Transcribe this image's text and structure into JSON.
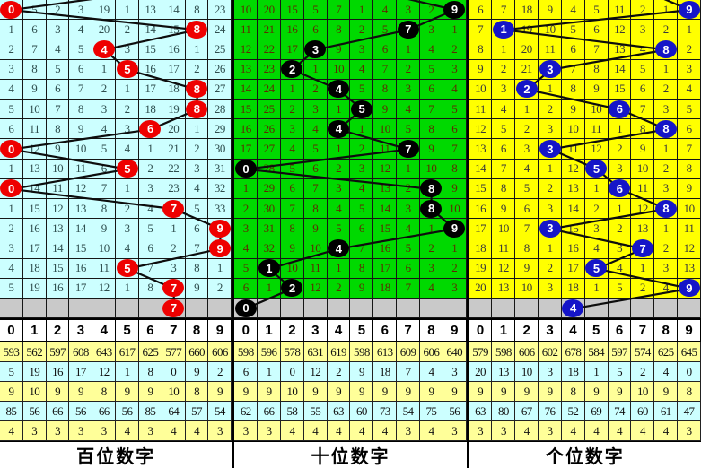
{
  "columns": [
    "0",
    "1",
    "2",
    "3",
    "4",
    "5",
    "6",
    "7",
    "8",
    "9"
  ],
  "colors": {
    "grid_line": "#161616",
    "trace_line": "#0d0d0d",
    "gray_row_bg": "#C9C9C9",
    "stat_yellow_bg": "#FFFF99",
    "stat_cyan_bg": "#CCFFFF",
    "header_bg": "#FFFFFF",
    "ball_text": "#FFFFFF"
  },
  "chart_data": {
    "type": "table",
    "subtype": "lottery-3D-trend-chart",
    "legend": "Each panel: columns are digits 0-9, rows are draws; numbers are miss counts; colored ball marks drawn digit; gray bottom row is next-draw pick; five stat rows follow the digit header.",
    "panels": [
      {
        "id": "hundreds",
        "footer_label": "百位数字",
        "cell_bg": "#CCFFFF",
        "text_color": "#2F4F4F",
        "ball_color": "#EE0000",
        "incoming_top_x": 125,
        "drawn_sequence": [
          0,
          8,
          4,
          5,
          8,
          8,
          6,
          0,
          5,
          0,
          7,
          9,
          9,
          5,
          7
        ],
        "next_ball_col": 4,
        "rows": [
          {
            "cells": [
              0,
              5,
              2,
              3,
              19,
              1,
              13,
              14,
              8,
              23
            ],
            "ball": 0
          },
          {
            "cells": [
              1,
              6,
              3,
              4,
              20,
              2,
              14,
              15,
              8,
              24
            ],
            "ball": 8
          },
          {
            "cells": [
              2,
              7,
              4,
              5,
              4,
              3,
              15,
              16,
              1,
              25
            ],
            "ball": 4
          },
          {
            "cells": [
              3,
              8,
              5,
              6,
              1,
              5,
              16,
              17,
              2,
              26
            ],
            "ball": 5
          },
          {
            "cells": [
              4,
              9,
              6,
              7,
              2,
              1,
              17,
              18,
              8,
              27
            ],
            "ball": 8
          },
          {
            "cells": [
              5,
              10,
              7,
              8,
              3,
              2,
              18,
              19,
              8,
              28
            ],
            "ball": 8
          },
          {
            "cells": [
              6,
              11,
              8,
              9,
              4,
              3,
              6,
              20,
              1,
              29
            ],
            "ball": 6
          },
          {
            "cells": [
              0,
              12,
              9,
              10,
              5,
              4,
              1,
              21,
              2,
              30
            ],
            "ball": 0
          },
          {
            "cells": [
              1,
              13,
              10,
              11,
              6,
              5,
              2,
              22,
              3,
              31
            ],
            "ball": 5
          },
          {
            "cells": [
              0,
              14,
              11,
              12,
              7,
              1,
              3,
              23,
              4,
              32
            ],
            "ball": 0
          },
          {
            "cells": [
              1,
              15,
              12,
              13,
              8,
              2,
              4,
              7,
              5,
              33
            ],
            "ball": 7
          },
          {
            "cells": [
              2,
              16,
              13,
              14,
              9,
              3,
              5,
              1,
              6,
              9
            ],
            "ball": 9
          },
          {
            "cells": [
              3,
              17,
              14,
              15,
              10,
              4,
              6,
              2,
              7,
              9
            ],
            "ball": 9
          },
          {
            "cells": [
              4,
              18,
              15,
              16,
              11,
              5,
              7,
              3,
              8,
              1
            ],
            "ball": 5
          },
          {
            "cells": [
              5,
              19,
              16,
              17,
              12,
              1,
              8,
              7,
              9,
              2
            ],
            "ball": 7
          }
        ],
        "next_ball": 7,
        "stats": [
          [
            "593",
            "562",
            "597",
            "608",
            "643",
            "617",
            "625",
            "577",
            "660",
            "606"
          ],
          [
            "5",
            "19",
            "16",
            "17",
            "12",
            "1",
            "8",
            "0",
            "9",
            "2"
          ],
          [
            "9",
            "10",
            "9",
            "9",
            "8",
            "9",
            "9",
            "10",
            "8",
            "9"
          ],
          [
            "85",
            "56",
            "66",
            "56",
            "66",
            "56",
            "85",
            "64",
            "57",
            "54"
          ],
          [
            "4",
            "3",
            "3",
            "3",
            "3",
            "4",
            "3",
            "4",
            "4",
            "3"
          ]
        ]
      },
      {
        "id": "tens",
        "footer_label": "十位数字",
        "cell_bg": "#00D900",
        "text_color": "#5C2E00",
        "ball_color": "#000000",
        "incoming_top_x": 181,
        "drawn_sequence": [
          9,
          7,
          3,
          2,
          4,
          5,
          4,
          7,
          0,
          8,
          8,
          9,
          4,
          1,
          2
        ],
        "rows": [
          {
            "cells": [
              10,
              20,
              15,
              5,
              7,
              1,
              4,
              3,
              2,
              9
            ],
            "ball": 9
          },
          {
            "cells": [
              11,
              21,
              16,
              6,
              8,
              2,
              5,
              7,
              3,
              1
            ],
            "ball": 7
          },
          {
            "cells": [
              12,
              22,
              17,
              3,
              9,
              3,
              6,
              1,
              4,
              2
            ],
            "ball": 3
          },
          {
            "cells": [
              13,
              23,
              2,
              1,
              10,
              4,
              7,
              2,
              5,
              3
            ],
            "ball": 2
          },
          {
            "cells": [
              14,
              24,
              1,
              2,
              4,
              5,
              8,
              3,
              6,
              4
            ],
            "ball": 4
          },
          {
            "cells": [
              15,
              25,
              2,
              3,
              1,
              5,
              9,
              4,
              7,
              5
            ],
            "ball": 5
          },
          {
            "cells": [
              16,
              26,
              3,
              4,
              4,
              1,
              10,
              5,
              8,
              6
            ],
            "ball": 4
          },
          {
            "cells": [
              17,
              27,
              4,
              5,
              1,
              2,
              11,
              7,
              9,
              7
            ],
            "ball": 7
          },
          {
            "cells": [
              0,
              28,
              5,
              6,
              2,
              3,
              12,
              1,
              10,
              8
            ],
            "ball": 0
          },
          {
            "cells": [
              1,
              29,
              6,
              7,
              3,
              4,
              13,
              2,
              8,
              9
            ],
            "ball": 8
          },
          {
            "cells": [
              2,
              30,
              7,
              8,
              4,
              5,
              14,
              3,
              8,
              10
            ],
            "ball": 8
          },
          {
            "cells": [
              3,
              31,
              8,
              9,
              5,
              6,
              15,
              4,
              1,
              9
            ],
            "ball": 9
          },
          {
            "cells": [
              4,
              32,
              9,
              10,
              4,
              7,
              16,
              5,
              2,
              1
            ],
            "ball": 4
          },
          {
            "cells": [
              5,
              1,
              10,
              11,
              1,
              8,
              17,
              6,
              3,
              2
            ],
            "ball": 1
          },
          {
            "cells": [
              6,
              1,
              2,
              12,
              2,
              9,
              18,
              7,
              4,
              3
            ],
            "ball": 2
          }
        ],
        "next_ball": 0,
        "stats": [
          [
            "598",
            "596",
            "578",
            "631",
            "619",
            "598",
            "613",
            "609",
            "606",
            "640"
          ],
          [
            "6",
            "1",
            "0",
            "12",
            "2",
            "9",
            "18",
            "7",
            "4",
            "3"
          ],
          [
            "9",
            "9",
            "10",
            "9",
            "9",
            "9",
            "9",
            "9",
            "9",
            "9"
          ],
          [
            "62",
            "66",
            "58",
            "55",
            "63",
            "60",
            "73",
            "54",
            "75",
            "56"
          ],
          [
            "3",
            "3",
            "4",
            "4",
            "4",
            "4",
            "4",
            "3",
            "4",
            "3"
          ]
        ]
      },
      {
        "id": "units",
        "footer_label": "个位数字",
        "cell_bg": "#FFFF00",
        "text_color": "#3A3A3A",
        "ball_color": "#1515C8",
        "incoming_top_x": 210,
        "drawn_sequence": [
          9,
          1,
          8,
          3,
          2,
          6,
          8,
          3,
          5,
          6,
          8,
          3,
          7,
          5,
          9
        ],
        "rows": [
          {
            "cells": [
              6,
              7,
              18,
              9,
              4,
              5,
              11,
              2,
              1,
              9
            ],
            "ball": 9
          },
          {
            "cells": [
              7,
              1,
              19,
              10,
              5,
              6,
              12,
              3,
              2,
              1
            ],
            "ball": 1
          },
          {
            "cells": [
              8,
              1,
              20,
              11,
              6,
              7,
              13,
              4,
              8,
              2
            ],
            "ball": 8
          },
          {
            "cells": [
              9,
              2,
              21,
              3,
              7,
              8,
              14,
              5,
              1,
              3
            ],
            "ball": 3
          },
          {
            "cells": [
              10,
              3,
              2,
              1,
              8,
              9,
              15,
              6,
              2,
              4
            ],
            "ball": 2
          },
          {
            "cells": [
              11,
              4,
              1,
              2,
              9,
              10,
              6,
              7,
              3,
              5
            ],
            "ball": 6
          },
          {
            "cells": [
              12,
              5,
              2,
              3,
              10,
              11,
              1,
              8,
              8,
              6
            ],
            "ball": 8
          },
          {
            "cells": [
              13,
              6,
              3,
              3,
              11,
              12,
              2,
              9,
              1,
              7
            ],
            "ball": 3
          },
          {
            "cells": [
              14,
              7,
              4,
              1,
              12,
              5,
              3,
              10,
              2,
              8
            ],
            "ball": 5
          },
          {
            "cells": [
              15,
              8,
              5,
              2,
              13,
              1,
              6,
              11,
              3,
              9
            ],
            "ball": 6
          },
          {
            "cells": [
              16,
              9,
              6,
              3,
              14,
              2,
              1,
              12,
              8,
              10
            ],
            "ball": 8
          },
          {
            "cells": [
              17,
              10,
              7,
              3,
              15,
              3,
              2,
              13,
              1,
              11
            ],
            "ball": 3
          },
          {
            "cells": [
              18,
              11,
              8,
              1,
              16,
              4,
              3,
              7,
              2,
              12
            ],
            "ball": 7
          },
          {
            "cells": [
              19,
              12,
              9,
              2,
              17,
              5,
              4,
              1,
              3,
              13
            ],
            "ball": 5
          },
          {
            "cells": [
              20,
              13,
              10,
              3,
              18,
              1,
              5,
              2,
              4,
              9
            ],
            "ball": 9
          }
        ],
        "next_ball": 4,
        "stats": [
          [
            "579",
            "598",
            "606",
            "602",
            "678",
            "584",
            "597",
            "574",
            "625",
            "645"
          ],
          [
            "20",
            "13",
            "10",
            "3",
            "18",
            "1",
            "5",
            "2",
            "4",
            "0"
          ],
          [
            "9",
            "9",
            "9",
            "9",
            "8",
            "9",
            "9",
            "10",
            "9",
            "8"
          ],
          [
            "63",
            "80",
            "67",
            "76",
            "52",
            "69",
            "74",
            "60",
            "61",
            "47"
          ],
          [
            "3",
            "3",
            "4",
            "3",
            "4",
            "4",
            "4",
            "4",
            "4",
            "3"
          ]
        ]
      }
    ]
  }
}
